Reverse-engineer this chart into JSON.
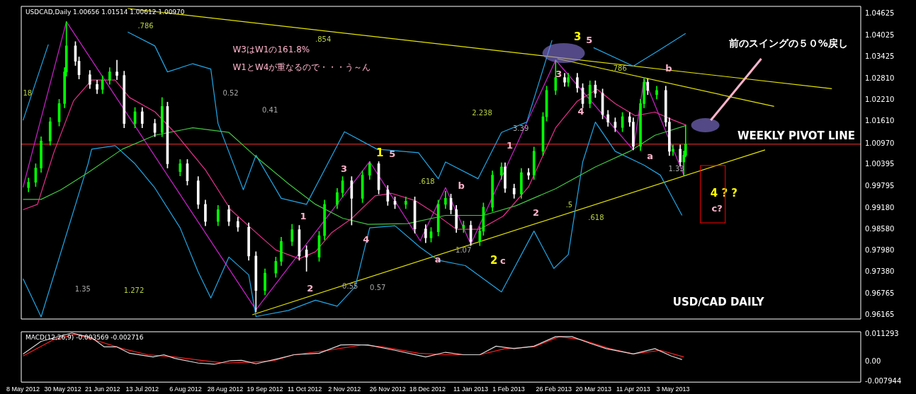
{
  "chart_data": [
    {
      "type": "candlestick",
      "title": "USDCAD,Daily 1.00656 1.01514 1.00612 1.00970",
      "x": [
        "2012-05-11",
        "2012-05-15",
        "2012-05-18",
        "2012-05-23",
        "2012-05-28",
        "2012-05-31",
        "2012-06-01",
        "2012-06-06",
        "2012-06-08",
        "2012-06-14",
        "2012-06-18",
        "2012-06-21",
        "2012-06-25",
        "2012-06-29",
        "2012-07-03",
        "2012-07-09",
        "2012-07-13",
        "2012-07-20",
        "2012-07-24",
        "2012-07-27",
        "2012-08-03",
        "2012-08-07",
        "2012-08-13",
        "2012-08-17",
        "2012-08-24",
        "2012-08-30",
        "2012-09-04",
        "2012-09-10",
        "2012-09-14",
        "2012-09-19",
        "2012-09-25",
        "2012-09-28",
        "2012-10-04",
        "2012-10-08",
        "2012-10-12",
        "2012-10-19",
        "2012-10-22",
        "2012-10-29",
        "2012-11-01",
        "2012-11-06",
        "2012-11-12",
        "2012-11-16",
        "2012-11-21",
        "2012-11-26",
        "2012-11-30",
        "2012-12-06",
        "2012-12-11",
        "2012-12-17",
        "2012-12-20",
        "2012-12-24",
        "2012-12-28",
        "2012-12-31",
        "2013-01-03",
        "2013-01-07",
        "2013-01-11",
        "2013-01-16",
        "2013-01-18",
        "2013-01-23",
        "2013-01-28",
        "2013-01-30",
        "2013-02-04",
        "2013-02-08",
        "2013-02-12",
        "2013-02-15",
        "2013-02-20",
        "2013-02-22",
        "2013-02-27",
        "2013-03-04",
        "2013-03-06",
        "2013-03-11",
        "2013-03-14",
        "2013-03-18",
        "2013-03-21",
        "2013-03-25",
        "2013-03-28",
        "2013-04-01",
        "2013-04-05",
        "2013-04-09",
        "2013-04-11",
        "2013-04-15",
        "2013-04-17",
        "2013-04-19",
        "2013-04-24",
        "2013-04-29",
        "2013-05-01",
        "2013-05-03",
        "2013-05-07",
        "2013-05-09",
        "2013-05-10"
      ],
      "ohlc": [
        [
          0.9975,
          1.0002,
          0.9963,
          0.999
        ],
        [
          0.999,
          1.0042,
          0.9978,
          1.003
        ],
        [
          1.003,
          1.0118,
          1.0018,
          1.0106
        ],
        [
          1.0106,
          1.0172,
          1.0094,
          1.016
        ],
        [
          1.016,
          1.0223,
          1.0148,
          1.0211
        ],
        [
          1.0211,
          1.0312,
          1.0199,
          1.03
        ],
        [
          1.03,
          1.0441,
          1.0288,
          1.0373
        ],
        [
          1.0373,
          1.0385,
          1.0318,
          1.033
        ],
        [
          1.033,
          1.0342,
          1.028,
          1.0292
        ],
        [
          1.0292,
          1.0304,
          1.0253,
          1.0265
        ],
        [
          1.0265,
          1.0277,
          1.0239,
          1.0251
        ],
        [
          1.0251,
          1.0289,
          1.0239,
          1.0277
        ],
        [
          1.0277,
          1.0312,
          1.0265,
          1.03
        ],
        [
          1.03,
          1.0333,
          1.0278,
          1.029
        ],
        [
          1.029,
          1.0302,
          1.0143,
          1.0155
        ],
        [
          1.0155,
          1.02,
          1.0143,
          1.0188
        ],
        [
          1.0188,
          1.02,
          1.0143,
          1.0155
        ],
        [
          1.0155,
          1.0167,
          1.0118,
          1.013
        ],
        [
          1.013,
          1.0228,
          1.0118,
          1.0203
        ],
        [
          1.0203,
          1.0215,
          1.003,
          1.0042
        ],
        [
          1.002,
          1.0054,
          1.0008,
          1.0042
        ],
        [
          1.0042,
          1.0054,
          0.9982,
          0.9994
        ],
        [
          0.9994,
          1.0006,
          0.9916,
          0.9928
        ],
        [
          0.9928,
          0.994,
          0.9868,
          0.988
        ],
        [
          0.988,
          0.9925,
          0.9868,
          0.9913
        ],
        [
          0.9913,
          0.9925,
          0.9868,
          0.988
        ],
        [
          0.988,
          0.9892,
          0.9852,
          0.9864
        ],
        [
          0.9864,
          0.9876,
          0.9771,
          0.9783
        ],
        [
          0.9783,
          0.9795,
          0.9626,
          0.9686
        ],
        [
          0.9686,
          0.9747,
          0.9674,
          0.9735
        ],
        [
          0.9735,
          0.978,
          0.9723,
          0.9768
        ],
        [
          0.9768,
          0.9836,
          0.9756,
          0.9824
        ],
        [
          0.9824,
          0.9872,
          0.9812,
          0.9857
        ],
        [
          0.9857,
          0.9869,
          0.9771,
          0.9783
        ],
        [
          0.98,
          0.9812,
          0.974,
          0.978
        ],
        [
          0.978,
          0.9852,
          0.9768,
          0.984
        ],
        [
          0.984,
          0.994,
          0.9828,
          0.9928
        ],
        [
          0.9928,
          0.9973,
          0.9916,
          0.9961
        ],
        [
          0.9961,
          1.0006,
          0.9949,
          0.9994
        ],
        [
          0.9994,
          1.0006,
          0.987,
          0.9945
        ],
        [
          0.9945,
          1.0022,
          0.9933,
          1.001
        ],
        [
          1.001,
          1.0048,
          0.9998,
          1.0042
        ],
        [
          1.0042,
          1.0048,
          0.9957,
          0.9969
        ],
        [
          0.9969,
          0.9981,
          0.9925,
          0.9937
        ],
        [
          0.9937,
          0.9949,
          0.9916,
          0.9928
        ],
        [
          0.9928,
          0.9949,
          0.9916,
          0.9937
        ],
        [
          0.9937,
          0.9949,
          0.9847,
          0.9859
        ],
        [
          0.9859,
          0.9871,
          0.982,
          0.9834
        ],
        [
          0.9834,
          0.9863,
          0.9822,
          0.9851
        ],
        [
          0.9851,
          0.994,
          0.9839,
          0.9928
        ],
        [
          0.9928,
          0.9965,
          0.9916,
          0.9945
        ],
        [
          0.9945,
          0.9957,
          0.9901,
          0.9913
        ],
        [
          0.9913,
          0.9925,
          0.9849,
          0.9861
        ],
        [
          0.9861,
          0.9881,
          0.9849,
          0.9869
        ],
        [
          0.9869,
          0.9881,
          0.9812,
          0.9824
        ],
        [
          0.9824,
          0.9865,
          0.9812,
          0.9853
        ],
        [
          0.9853,
          0.9932,
          0.9841,
          0.992
        ],
        [
          0.992,
          1.0022,
          0.9908,
          1.001
        ],
        [
          1.001,
          1.0045,
          0.9998,
          1.0033
        ],
        [
          1.0033,
          1.0045,
          0.9961,
          0.9973
        ],
        [
          0.9973,
          0.9985,
          0.9945,
          0.9957
        ],
        [
          0.9957,
          1.0029,
          0.9945,
          1.0017
        ],
        [
          1.0017,
          1.0029,
          0.9998,
          1.001
        ],
        [
          1.001,
          1.0089,
          0.9998,
          1.0077
        ],
        [
          1.0077,
          1.0186,
          1.0065,
          1.0174
        ],
        [
          1.0174,
          1.026,
          1.0162,
          1.0248
        ],
        [
          1.0248,
          1.0333,
          1.0236,
          1.0284
        ],
        [
          1.0284,
          1.0296,
          1.0259,
          1.0271
        ],
        [
          1.0271,
          1.0296,
          1.0259,
          1.0284
        ],
        [
          1.0284,
          1.0296,
          1.0243,
          1.0255
        ],
        [
          1.0255,
          1.0267,
          1.0199,
          1.0211
        ],
        [
          1.0211,
          1.0275,
          1.0199,
          1.0263
        ],
        [
          1.0263,
          1.0275,
          1.0228,
          1.024
        ],
        [
          1.024,
          1.0252,
          1.0168,
          1.018
        ],
        [
          1.018,
          1.0192,
          1.0147,
          1.0159
        ],
        [
          1.0159,
          1.0171,
          1.0132,
          1.0144
        ],
        [
          1.0144,
          1.0186,
          1.0132,
          1.0174
        ],
        [
          1.0174,
          1.0186,
          1.0147,
          1.0159
        ],
        [
          1.0159,
          1.0171,
          1.0081,
          1.0091
        ],
        [
          1.0091,
          1.0223,
          1.0079,
          1.0211
        ],
        [
          1.0211,
          1.0281,
          1.0199,
          1.0271
        ],
        [
          1.0271,
          1.0281,
          1.0236,
          1.0248
        ],
        [
          1.0236,
          1.026,
          1.0224,
          1.0248
        ],
        [
          1.0248,
          1.026,
          1.0147,
          1.0159
        ],
        [
          1.0159,
          1.0171,
          1.0065,
          1.0077
        ],
        [
          1.0077,
          1.0095,
          1.0065,
          1.0083
        ],
        [
          1.0083,
          1.0095,
          1.0035,
          1.0047
        ],
        [
          1.0047,
          1.0078,
          1.001,
          1.0066
        ],
        [
          1.00656,
          1.01514,
          1.00612,
          1.0097
        ]
      ],
      "series": [
        {
          "type": "line",
          "color": "#e8308c",
          "x": [
            "2012-05-08",
            "2012-05-16",
            "2012-05-25",
            "2012-06-05",
            "2012-06-15",
            "2012-06-28",
            "2012-07-06",
            "2012-07-20",
            "2012-07-31",
            "2012-08-17",
            "2012-08-31",
            "2012-09-14",
            "2012-09-25",
            "2012-10-08",
            "2012-10-17",
            "2012-10-26",
            "2012-11-06",
            "2012-11-19",
            "2012-11-28",
            "2012-12-11",
            "2012-12-20",
            "2013-01-03",
            "2013-01-16",
            "2013-01-29",
            "2013-02-12",
            "2013-02-27",
            "2013-03-11",
            "2013-03-22",
            "2013-04-01",
            "2013-04-12",
            "2013-04-23",
            "2013-05-03",
            "2013-05-10"
          ],
          "values": [
            0.9913,
            0.9928,
            1.0073,
            1.0219,
            1.0277,
            1.0277,
            1.0228,
            1.0188,
            1.013,
            1.0025,
            0.9913,
            0.9849,
            0.98,
            0.9775,
            0.9795,
            0.9849,
            0.9888,
            0.9952,
            0.9959,
            0.9939,
            0.991,
            0.9858,
            0.9858,
            0.9895,
            0.9977,
            1.0143,
            1.0218,
            1.0251,
            1.0211,
            1.0177,
            1.0187,
            1.0165,
            1.0151
          ]
        },
        {
          "type": "line",
          "color": "#40c840",
          "x": [
            "2012-05-08",
            "2012-05-18",
            "2012-05-29",
            "2012-06-13",
            "2012-07-02",
            "2012-07-20",
            "2012-08-10",
            "2012-08-30",
            "2012-09-13",
            "2012-10-02",
            "2012-10-17",
            "2012-11-01",
            "2012-11-15",
            "2012-12-07",
            "2012-12-28",
            "2013-01-18",
            "2013-02-05",
            "2013-02-27",
            "2013-03-21",
            "2013-04-09",
            "2013-04-23",
            "2013-05-10"
          ],
          "values": [
            0.9942,
            0.9942,
            0.9969,
            1.0017,
            1.0083,
            1.0122,
            1.0143,
            1.013,
            1.0066,
            0.9986,
            0.9928,
            0.9889,
            0.9872,
            0.9874,
            0.9897,
            0.9897,
            0.9924,
            0.9972,
            1.0033,
            1.0077,
            1.0122,
            1.0149
          ]
        },
        {
          "type": "line",
          "color": "#1fa8e8",
          "x": [
            "2012-05-08",
            "2012-05-22",
            "2012-05-28",
            "2012-07-05",
            "2012-07-20",
            "2012-07-27",
            "2012-08-10",
            "2012-08-20",
            "2012-08-24",
            "2012-09-07",
            "2012-09-14",
            "2012-09-28",
            "2012-10-12",
            "2012-11-02",
            "2012-11-20",
            "2012-12-13",
            "2012-12-24",
            "2012-12-28",
            "2013-01-15",
            "2013-01-28",
            "2013-02-11",
            "2013-02-25",
            "2013-03-04",
            "2013-03-20",
            "2013-04-11",
            "2013-04-25",
            "2013-05-10"
          ],
          "values": [
            1.0164,
            1.0377,
            null,
            1.0412,
            1.0373,
            1.03,
            1.0323,
            1.0308,
            1.0155,
            0.9969,
            1.0066,
            0.9945,
            0.9928,
            1.0132,
            1.0083,
            1.0073,
            1.0,
            1.0047,
            1.0,
            1.013,
            1.0159,
            1.0389,
            null,
            1.0368,
            1.0316,
            1.036,
            1.0408
          ]
        },
        {
          "type": "line",
          "color": "#1fa8e8",
          "x": [
            "2012-05-08",
            "2012-05-18",
            "2012-06-13",
            "2012-06-15",
            "2012-06-28",
            "2012-07-09",
            "2012-07-20",
            "2012-08-03",
            "2012-08-13",
            "2012-08-20",
            "2012-08-30",
            "2012-09-10",
            "2012-09-14",
            "2012-10-02",
            "2012-10-17",
            "2012-10-29",
            "2012-11-08",
            "2012-11-16",
            "2012-11-30",
            "2012-12-14",
            "2012-12-24",
            "2013-01-08",
            "2013-01-28",
            "2013-02-15",
            "2013-02-26",
            "2013-03-06",
            "2013-03-14",
            "2013-03-21",
            "2013-04-01",
            "2013-04-17",
            "2013-04-26",
            "2013-05-08"
          ],
          "values": [
            0.9719,
            0.9612,
            1.0042,
            1.0083,
            1.0093,
            1.0042,
            0.9974,
            0.9862,
            0.9738,
            0.9665,
            0.978,
            0.973,
            0.9613,
            0.963,
            0.9659,
            0.9642,
            0.9697,
            0.9862,
            0.9868,
            0.9807,
            0.9771,
            0.9756,
            0.9682,
            0.9853,
            0.9748,
            0.9787,
            1.0047,
            1.0159,
            1.0077,
            1.0038,
            1.001,
            0.9897
          ]
        },
        {
          "type": "line",
          "color": "#e6e600",
          "x": [
            "2012-07-05",
            "2013-07-30"
          ],
          "values": [
            1.0478,
            1.0253
          ]
        },
        {
          "type": "line",
          "color": "#e6e600",
          "x": [
            "2013-02-28",
            "2013-06-28"
          ],
          "values": [
            1.0337,
            1.0203
          ]
        },
        {
          "type": "line",
          "color": "#e6e600",
          "x": [
            "2012-09-12",
            "2013-06-23"
          ],
          "values": [
            0.9618,
            1.0081
          ]
        },
        {
          "type": "line",
          "color": "#d020d0",
          "x": [
            "2012-05-08",
            "2012-06-01",
            "2012-09-14",
            "2012-11-16",
            "2012-12-14",
            "2012-12-28",
            "2013-01-11",
            "2013-02-27",
            "2013-04-11",
            "2013-04-17",
            "2013-05-09"
          ],
          "values": [
            0.9976,
            1.0441,
            0.9632,
            1.0048,
            0.9826,
            0.9975,
            0.9816,
            1.0333,
            1.0081,
            1.0281,
            1.001
          ]
        }
      ],
      "xlim": [
        "2012-05-07",
        "2013-08-15"
      ],
      "ylim": [
        0.9606,
        1.0484
      ],
      "yticks": [
        1.04625,
        1.04025,
        1.03425,
        {
          "value": 1.0281,
          "label": "1.02810"
        },
        {
          "value": 1.0221,
          "label": "1.02210"
        },
        {
          "value": 1.0161,
          "label": "1.01610"
        },
        {
          "value": 1.0097,
          "label": "1.00970"
        },
        1.00395,
        0.99795,
        {
          "value": 0.9918,
          "label": "0.99180"
        },
        {
          "value": 0.9858,
          "label": "0.98580"
        },
        {
          "value": 0.9798,
          "label": "0.97980"
        },
        {
          "value": 0.9738,
          "label": "0.97380"
        },
        0.96765,
        0.96165
      ],
      "tick_labels": "y",
      "grid": false,
      "legend": false,
      "marker": "none",
      "line_style": "solid",
      "ref_lines": [
        {
          "axis": "y",
          "value": 1.0097,
          "label": "WEEKLY PIVOT LINE",
          "color": "#ff3030"
        }
      ],
      "annotations": [
        "W3はW1の161.8%",
        "W1とW4が重なるので・・・う～ん",
        "前のスイングの５０%戻し",
        "USD/CAD DAILY",
        "18",
        ".786",
        ".854",
        "0.52",
        "0.41",
        "2.238",
        "3.39",
        ".618",
        "1.07",
        "0.55",
        "0.57",
        "1.35",
        "1.272",
        ".786",
        ".5",
        ".618",
        "1.33",
        "1",
        "5",
        "3",
        "1",
        "4",
        "2",
        "b",
        "a",
        "2",
        "c",
        "1",
        "2",
        "3",
        "4",
        "3",
        "5",
        "a",
        "b",
        "4 ? ?",
        "c?"
      ]
    },
    {
      "type": "line",
      "title": "MACD(12,26,9) -0.003569 -0.002716",
      "series": [
        {
          "color": "#d8d8d8",
          "x": [
            "2012-05-08",
            "2012-05-18",
            "2012-06-04",
            "2012-06-15",
            "2012-06-22",
            "2012-06-29",
            "2012-07-06",
            "2012-07-19",
            "2012-07-25",
            "2012-07-31",
            "2012-08-13",
            "2012-08-22",
            "2012-08-31",
            "2012-09-06",
            "2012-09-14",
            "2012-09-27",
            "2012-10-05",
            "2012-10-19",
            "2012-10-31",
            "2012-11-06",
            "2012-11-15",
            "2012-11-30",
            "2012-12-17",
            "2012-12-28",
            "2013-01-07",
            "2013-01-16",
            "2013-01-25",
            "2013-02-04",
            "2013-02-15",
            "2013-02-27",
            "2013-03-08",
            "2013-03-18",
            "2013-03-27",
            "2013-04-11",
            "2013-04-23",
            "2013-05-02",
            "2013-05-08"
          ],
          "values": [
            0.0033,
            0.0085,
            0.0119,
            0.01,
            0.0062,
            0.0062,
            0.0036,
            0.0021,
            0.003,
            0.0015,
            -0.0004,
            -0.0009,
            0.0006,
            0.0007,
            -0.0007,
            0.0015,
            0.003,
            0.0036,
            0.007,
            0.0071,
            0.007,
            0.0048,
            0.0021,
            0.004,
            0.003,
            0.003,
            0.0065,
            0.0055,
            0.0065,
            0.0104,
            0.0104,
            0.0077,
            0.0055,
            0.0033,
            0.0055,
            0.0025,
            0.001
          ]
        },
        {
          "color": "#ff2020",
          "x": [
            "2012-05-08",
            "2012-05-25",
            "2012-06-06",
            "2012-06-19",
            "2012-07-02",
            "2012-07-16",
            "2012-07-31",
            "2012-08-16",
            "2012-08-28",
            "2012-09-12",
            "2012-09-24",
            "2012-10-05",
            "2012-10-24",
            "2012-11-12",
            "2012-11-23",
            "2012-12-13",
            "2012-12-28",
            "2013-01-16",
            "2013-01-30",
            "2013-02-15",
            "2013-03-01",
            "2013-03-13",
            "2013-03-29",
            "2013-04-11",
            "2013-04-26",
            "2013-05-09"
          ],
          "values": [
            0.0025,
            0.0092,
            0.0114,
            0.0085,
            0.0055,
            0.003,
            0.0021,
            0.0006,
            -0.0004,
            0.0,
            0.0006,
            0.003,
            0.0048,
            0.007,
            0.0062,
            0.0036,
            0.003,
            0.003,
            0.0055,
            0.0062,
            0.0104,
            0.0092,
            0.0055,
            0.0033,
            0.0048,
            0.0021
          ]
        }
      ],
      "xlim": [
        "2012-05-07",
        "2013-08-15"
      ],
      "xticks": [
        {
          "value": "2012-05-08",
          "label": "8 May 2012"
        },
        {
          "value": "2012-05-30",
          "label": "30 May 2012"
        },
        {
          "value": "2012-06-21",
          "label": "21 Jun 2012"
        },
        {
          "value": "2012-07-13",
          "label": "13 Jul 2012"
        },
        {
          "value": "2012-08-06",
          "label": "6 Aug 2012"
        },
        {
          "value": "2012-08-28",
          "label": "28 Aug 2012"
        },
        {
          "value": "2012-09-19",
          "label": "19 Sep 2012"
        },
        {
          "value": "2012-10-11",
          "label": "11 Oct 2012"
        },
        {
          "value": "2012-11-02",
          "label": "2 Nov 2012"
        },
        {
          "value": "2012-11-26",
          "label": "26 Nov 2012"
        },
        {
          "value": "2012-12-18",
          "label": "18 Dec 2012"
        },
        {
          "value": "2013-01-11",
          "label": "11 Jan 2013"
        },
        {
          "value": "2013-02-01",
          "label": "1 Feb 2013"
        },
        {
          "value": "2013-02-26",
          "label": "26 Feb 2013"
        },
        {
          "value": "2013-03-20",
          "label": "20 Mar 2013"
        },
        {
          "value": "2013-04-11",
          "label": "11 Apr 2013"
        },
        {
          "value": "2013-05-03",
          "label": "3 May 2013"
        }
      ],
      "ylim": [
        -0.0082,
        0.0124
      ],
      "yticks": [
        0.011293,
        {
          "value": 0,
          "label": "0.00"
        },
        -0.007944
      ],
      "grid": false,
      "legend": false,
      "marker": "none",
      "line_style": "solid"
    }
  ]
}
